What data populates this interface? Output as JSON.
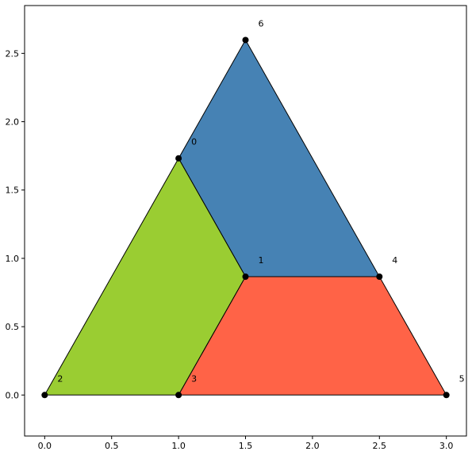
{
  "chart_data": {
    "type": "scatter",
    "title": "",
    "xlabel": "",
    "ylabel": "",
    "xlim": [
      -0.15,
      3.15
    ],
    "ylim": [
      -0.3,
      2.85
    ],
    "grid": false,
    "x_ticks": [
      0.0,
      0.5,
      1.0,
      1.5,
      2.0,
      2.5,
      3.0
    ],
    "x_tick_labels": [
      "0.0",
      "0.5",
      "1.0",
      "1.5",
      "2.0",
      "2.5",
      "3.0"
    ],
    "y_ticks": [
      0.0,
      0.5,
      1.0,
      1.5,
      2.0,
      2.5
    ],
    "y_tick_labels": [
      "0.0",
      "0.5",
      "1.0",
      "1.5",
      "2.0",
      "2.5"
    ],
    "points": [
      {
        "label": "0",
        "x": 1.0,
        "y": 1.732
      },
      {
        "label": "1",
        "x": 1.5,
        "y": 0.866
      },
      {
        "label": "2",
        "x": 0.0,
        "y": 0.0
      },
      {
        "label": "3",
        "x": 1.0,
        "y": 0.0
      },
      {
        "label": "4",
        "x": 2.5,
        "y": 0.866
      },
      {
        "label": "5",
        "x": 3.0,
        "y": 0.0
      },
      {
        "label": "6",
        "x": 1.5,
        "y": 2.598
      }
    ],
    "polygons": [
      {
        "color": "#4682B4",
        "vertices": [
          0,
          6,
          4,
          1
        ]
      },
      {
        "color": "#9ACD32",
        "vertices": [
          2,
          3,
          1,
          0
        ]
      },
      {
        "color": "#FF6347",
        "vertices": [
          3,
          5,
          4,
          1
        ]
      }
    ],
    "edge_color": "#000000",
    "marker_color": "#000000"
  }
}
